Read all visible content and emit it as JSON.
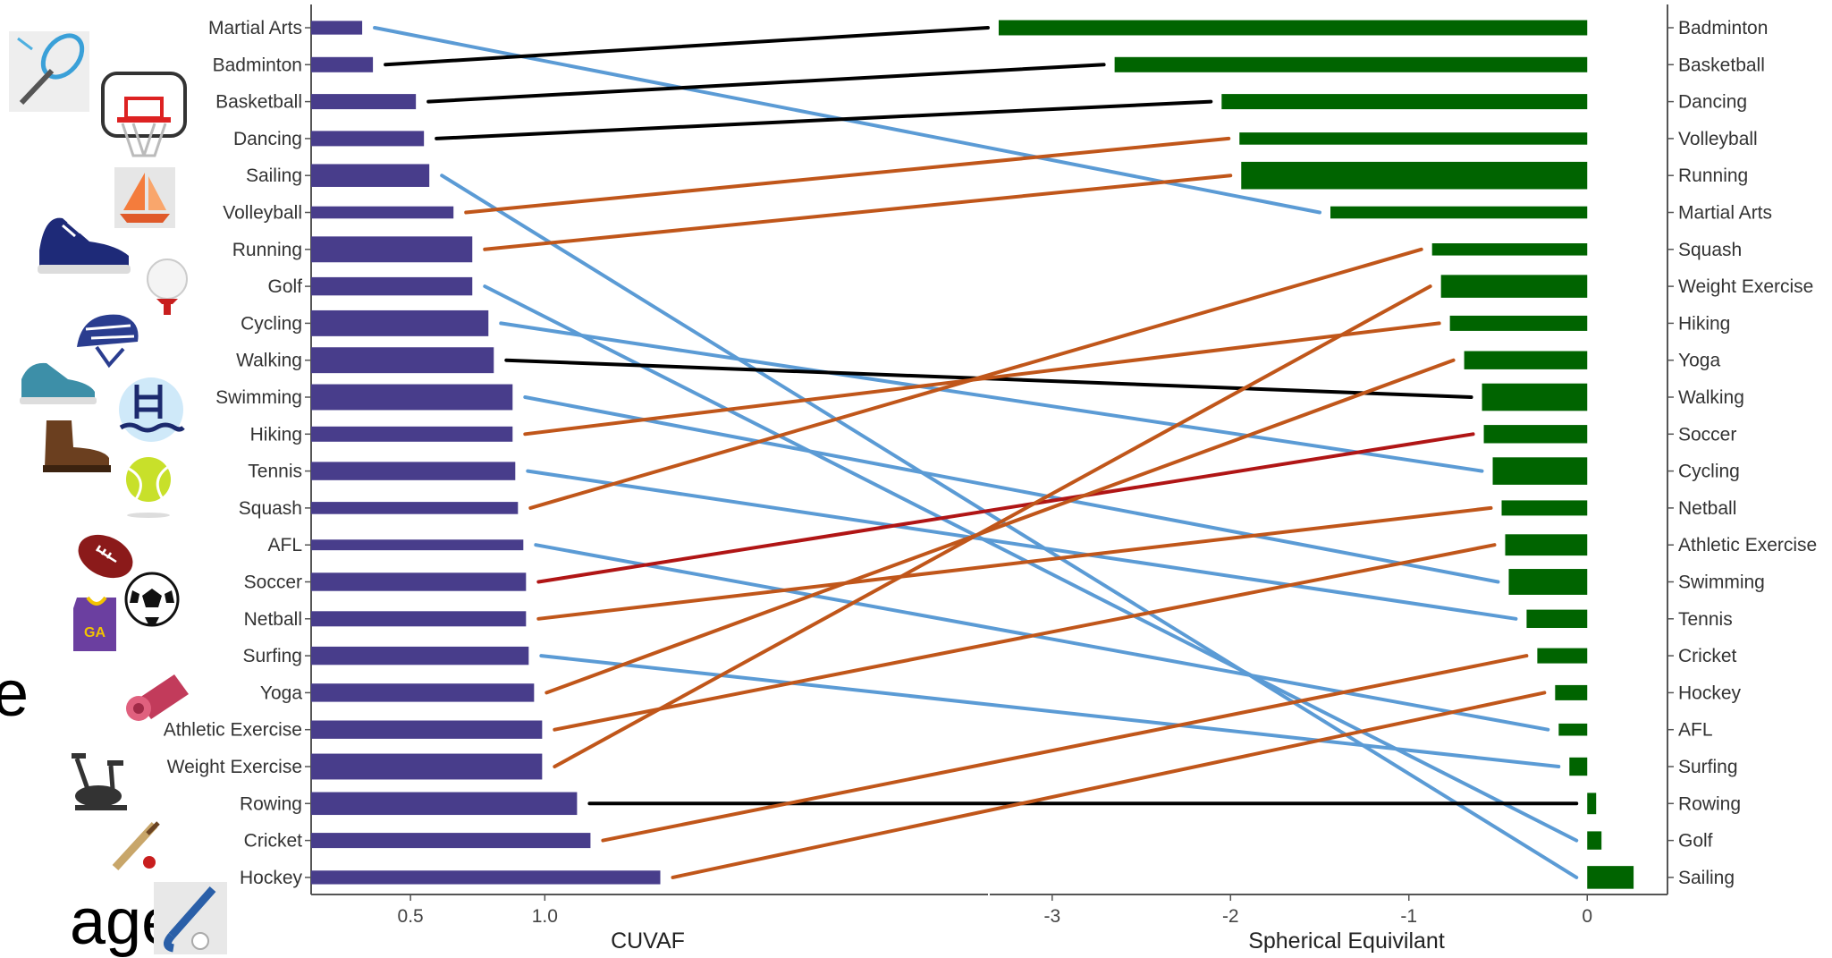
{
  "chart_data": {
    "type": "bar",
    "title": "",
    "left_panel": {
      "xlabel": "CUVAF",
      "xlim": [
        0.13,
        2.65
      ],
      "ticks": [
        0.5,
        1.0
      ],
      "tick_labels": [
        "0.5",
        "1.0"
      ],
      "bar_color": "#483D8B",
      "categories": [
        "Martial Arts",
        "Badminton",
        "Basketball",
        "Dancing",
        "Sailing",
        "Volleyball",
        "Running",
        "Golf",
        "Cycling",
        "Walking",
        "Swimming",
        "Hiking",
        "Tennis",
        "Squash",
        "AFL",
        "Soccer",
        "Netball",
        "Surfing",
        "Yoga",
        "Athletic Exercise",
        "Weight Exercise",
        "Rowing",
        "Cricket",
        "Hockey"
      ],
      "values": [
        0.32,
        0.36,
        0.52,
        0.55,
        0.57,
        0.66,
        0.73,
        0.73,
        0.79,
        0.81,
        0.88,
        0.88,
        0.89,
        0.9,
        0.92,
        0.93,
        0.93,
        0.94,
        0.96,
        0.99,
        0.99,
        1.12,
        1.17,
        1.43
      ],
      "bar_heights": [
        0.45,
        0.5,
        0.5,
        0.5,
        0.75,
        0.4,
        0.85,
        0.6,
        0.85,
        0.85,
        0.85,
        0.5,
        0.6,
        0.4,
        0.35,
        0.6,
        0.5,
        0.6,
        0.6,
        0.6,
        0.85,
        0.75,
        0.5,
        0.45
      ]
    },
    "right_panel": {
      "xlabel": "Spherical Equivilant",
      "xlim": [
        -3.35,
        0.45
      ],
      "ticks": [
        -3,
        -2,
        -1,
        0
      ],
      "tick_labels": [
        "-3",
        "-2",
        "-1",
        "0"
      ],
      "bar_color": "#006400",
      "categories": [
        "Badminton",
        "Basketball",
        "Dancing",
        "Volleyball",
        "Running",
        "Martial Arts",
        "Squash",
        "Weight Exercise",
        "Hiking",
        "Yoga",
        "Walking",
        "Soccer",
        "Cycling",
        "Netball",
        "Athletic Exercise",
        "Swimming",
        "Tennis",
        "Cricket",
        "Hockey",
        "AFL",
        "Surfing",
        "Rowing",
        "Golf",
        "Sailing"
      ],
      "values": [
        -3.3,
        -2.65,
        -2.05,
        -1.95,
        -1.94,
        -1.44,
        -0.87,
        -0.82,
        -0.77,
        -0.69,
        -0.59,
        -0.58,
        -0.53,
        -0.48,
        -0.46,
        -0.44,
        -0.34,
        -0.28,
        -0.18,
        -0.16,
        -0.1,
        0.05,
        0.08,
        0.26
      ],
      "bar_heights": [
        0.5,
        0.5,
        0.5,
        0.4,
        0.9,
        0.4,
        0.4,
        0.75,
        0.5,
        0.6,
        0.9,
        0.6,
        0.9,
        0.5,
        0.7,
        0.85,
        0.6,
        0.5,
        0.5,
        0.4,
        0.6,
        0.7,
        0.6,
        0.75
      ]
    },
    "connectors": {
      "colors": {
        "same": "#000000",
        "improved": "#5B9BD5",
        "worsened": "#C0561A",
        "soccer": "#B01515"
      }
    }
  },
  "frag": {
    "e": "e",
    "age": "age"
  },
  "icons": [
    "badminton-racket-icon",
    "basketball-hoop-icon",
    "sailboat-icon",
    "running-shoe-icon",
    "golf-ball-icon",
    "cycling-helmet-icon",
    "walking-shoe-icon",
    "swimming-pool-icon",
    "hiking-boot-icon",
    "tennis-ball-icon",
    "afl-football-icon",
    "soccer-ball-icon",
    "netball-bib-icon",
    "yoga-mat-icon",
    "exercise-bike-icon",
    "cricket-bat-icon",
    "hockey-stick-icon"
  ],
  "colors": {
    "purple": "#483D8B",
    "green": "#006400",
    "axis": "#555555"
  }
}
